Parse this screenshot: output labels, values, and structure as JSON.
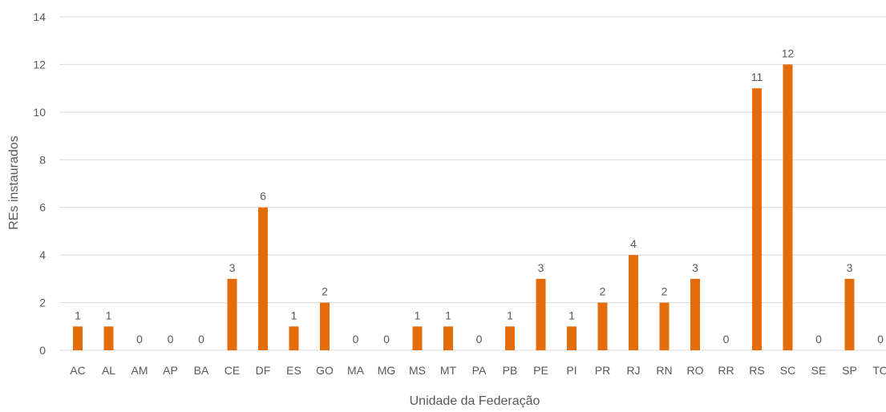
{
  "chart_data": {
    "type": "bar",
    "title": "",
    "xlabel": "Unidade da Federação",
    "ylabel": "REs instaurados",
    "ylim": [
      0,
      14
    ],
    "yticks": [
      0,
      2,
      4,
      6,
      8,
      10,
      12,
      14
    ],
    "grid": true,
    "legend": "none",
    "bar_color": "#E46C0A",
    "categories": [
      "AC",
      "AL",
      "AM",
      "AP",
      "BA",
      "CE",
      "DF",
      "ES",
      "GO",
      "MA",
      "MG",
      "MS",
      "MT",
      "PA",
      "PB",
      "PE",
      "PI",
      "PR",
      "RJ",
      "RN",
      "RO",
      "RR",
      "RS",
      "SC",
      "SE",
      "SP",
      "TO"
    ],
    "values": [
      1,
      1,
      0,
      0,
      0,
      3,
      6,
      1,
      2,
      0,
      0,
      1,
      1,
      0,
      1,
      3,
      1,
      2,
      4,
      2,
      3,
      0,
      11,
      12,
      0,
      3,
      0
    ]
  }
}
